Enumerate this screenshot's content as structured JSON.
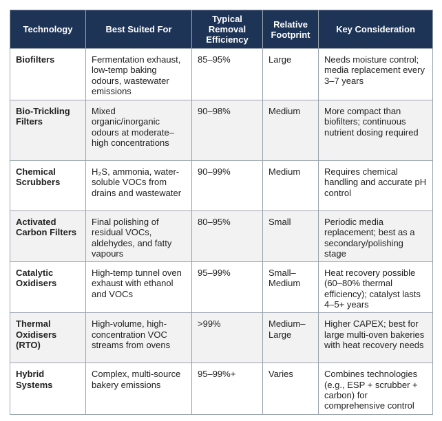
{
  "table": {
    "columns": [
      "Technology",
      "Best Suited For",
      "Typical Removal Efficiency",
      "Relative Footprint",
      "Key Consideration"
    ],
    "rows": [
      [
        "Biofilters",
        "Fermentation exhaust, low-temp baking odours, wastewater emissions",
        "85–95%",
        "Large",
        "Needs moisture control; media replacement every 3–7 years"
      ],
      [
        "Bio-Trickling Filters",
        "Mixed organic/inorganic odours at moderate–high concentrations",
        "90–98%",
        "Medium",
        "More compact than biofilters; continuous nutrient dosing required"
      ],
      [
        "Chemical Scrubbers",
        "H₂S, ammonia, water-soluble VOCs from drains and wastewater",
        "90–99%",
        "Medium",
        "Requires chemical handling and accurate pH control"
      ],
      [
        "Activated Carbon Filters",
        "Final polishing of residual VOCs, aldehydes, and fatty vapours",
        "80–95%",
        "Small",
        "Periodic media replacement; best as a secondary/polishing stage"
      ],
      [
        "Catalytic Oxidisers",
        "High-temp tunnel oven exhaust with ethanol and VOCs",
        "95–99%",
        "Small–Medium",
        "Heat recovery possible (60–80% thermal efficiency); catalyst lasts 4–5+ years"
      ],
      [
        "Thermal Oxidisers (RTO)",
        "High-volume, high-concentration VOC streams from ovens",
        ">99%",
        "Medium–Large",
        "Higher CAPEX; best for large multi-oven bakeries with heat recovery needs"
      ],
      [
        "Hybrid Systems",
        "Complex, multi-source bakery emissions",
        "95–99%+",
        "Varies",
        "Combines technologies (e.g., ESP + scrubber + carbon) for comprehensive control"
      ]
    ]
  }
}
